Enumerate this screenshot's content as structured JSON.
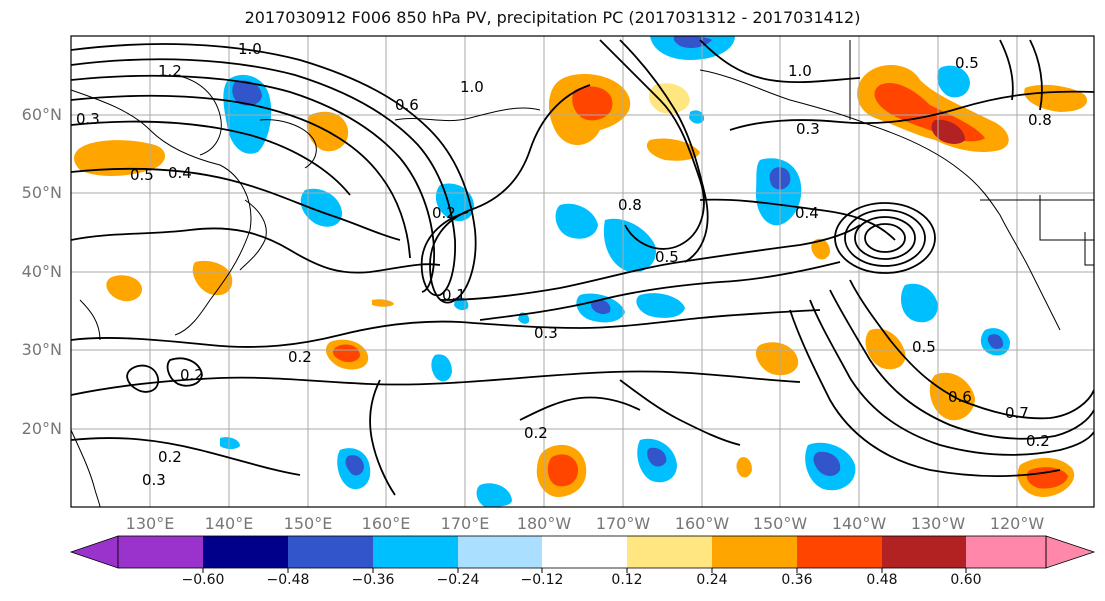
{
  "title": "2017030912 F006 850 hPa PV, precipitation PC (2017031312 - 2017031412)",
  "lat_labels": [
    "60°N",
    "50°N",
    "40°N",
    "30°N",
    "20°N"
  ],
  "lon_labels": [
    "130°E",
    "140°E",
    "150°E",
    "160°E",
    "170°E",
    "180°W",
    "170°W",
    "160°W",
    "150°W",
    "140°W",
    "130°W",
    "120°W"
  ],
  "colorbar": {
    "tick_labels": [
      "−0.60",
      "−0.48",
      "−0.36",
      "−0.24",
      "−0.12",
      "0.12",
      "0.24",
      "0.36",
      "0.48",
      "0.60"
    ],
    "colors": [
      "#9933cc",
      "#00008b",
      "#3355cc",
      "#00bfff",
      "#aadfff",
      "#ffffff",
      "#ffe680",
      "#ffa500",
      "#ff4500",
      "#b22222",
      "#ff88aa"
    ]
  },
  "contour_labels": [
    "1.0",
    "1.2",
    "0.3",
    "0.5",
    "0.4",
    "0.6",
    "1.0",
    "0.2",
    "0.8",
    "0.5",
    "1.0",
    "0.3",
    "0.4",
    "0.1",
    "0.3",
    "0.2",
    "0.2",
    "0.2",
    "0.2",
    "0.3",
    "0.5",
    "0.6",
    "0.7",
    "0.2",
    "0.5",
    "0.8"
  ]
}
